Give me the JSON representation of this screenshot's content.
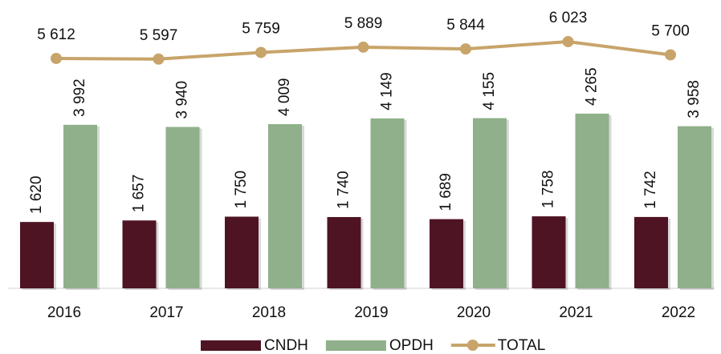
{
  "chart_data": {
    "type": "bar_line",
    "categories": [
      "2016",
      "2017",
      "2018",
      "2019",
      "2020",
      "2021",
      "2022"
    ],
    "series": [
      {
        "name": "CNDH",
        "type": "bar",
        "color": "#4f1424",
        "values": [
          1620,
          1657,
          1750,
          1740,
          1689,
          1758,
          1742
        ],
        "value_labels": [
          "1 620",
          "1 657",
          "1 750",
          "1 740",
          "1 689",
          "1 758",
          "1 742"
        ]
      },
      {
        "name": "OPDH",
        "type": "bar",
        "color": "#8fb08a",
        "values": [
          3992,
          3940,
          4009,
          4149,
          4155,
          4265,
          3958
        ],
        "value_labels": [
          "3 992",
          "3 940",
          "4 009",
          "4 149",
          "4 155",
          "4 265",
          "3 958"
        ]
      },
      {
        "name": "TOTAL",
        "type": "line",
        "color": "#c8a46a",
        "values": [
          5612,
          5597,
          5759,
          5889,
          5844,
          6023,
          5700
        ],
        "value_labels": [
          "5 612",
          "5 597",
          "5 759",
          "5 889",
          "5 844",
          "6 023",
          "5 700"
        ]
      }
    ],
    "ylim": [
      0,
      7000
    ],
    "legend": "bottom"
  }
}
